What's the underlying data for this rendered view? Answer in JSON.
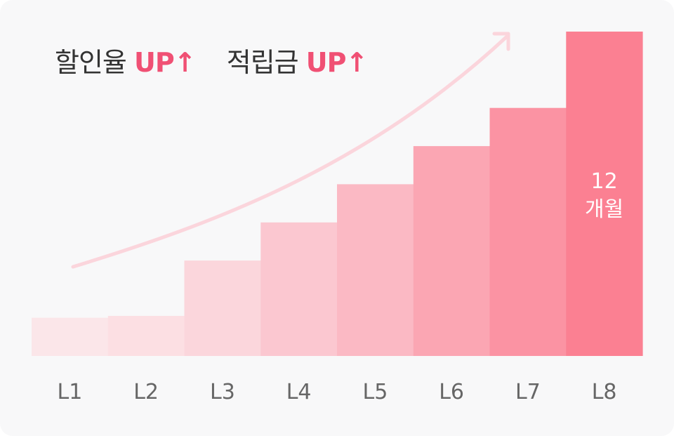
{
  "headline": {
    "part1_text": "할인율",
    "part1_highlight": "UP",
    "part1_arrow": "↑",
    "part2_text": "적립금",
    "part2_highlight": "UP",
    "part2_arrow": "↑"
  },
  "colors": {
    "highlight": "#f05074",
    "trend_arrow": "#fbd5dc",
    "text": "#333333",
    "axis_label": "#666666",
    "bar_fills": [
      "#fbe6e9",
      "#fcdfe3",
      "#fbd6dc",
      "#fbc7d0",
      "#fbb9c4",
      "#fba6b3",
      "#fb93a3",
      "#fb8092"
    ]
  },
  "chart_data": {
    "type": "bar",
    "categories": [
      "L1",
      "L2",
      "L3",
      "L4",
      "L5",
      "L6",
      "L7",
      "L8"
    ],
    "values": [
      1,
      1.05,
      2.5,
      3.5,
      4.5,
      5.5,
      6.5,
      8.5
    ],
    "ylim": [
      0,
      8.5
    ],
    "grid": false,
    "legend": "none",
    "annotations": [
      {
        "category": "L8",
        "lines": [
          "12",
          "개월"
        ]
      }
    ]
  }
}
